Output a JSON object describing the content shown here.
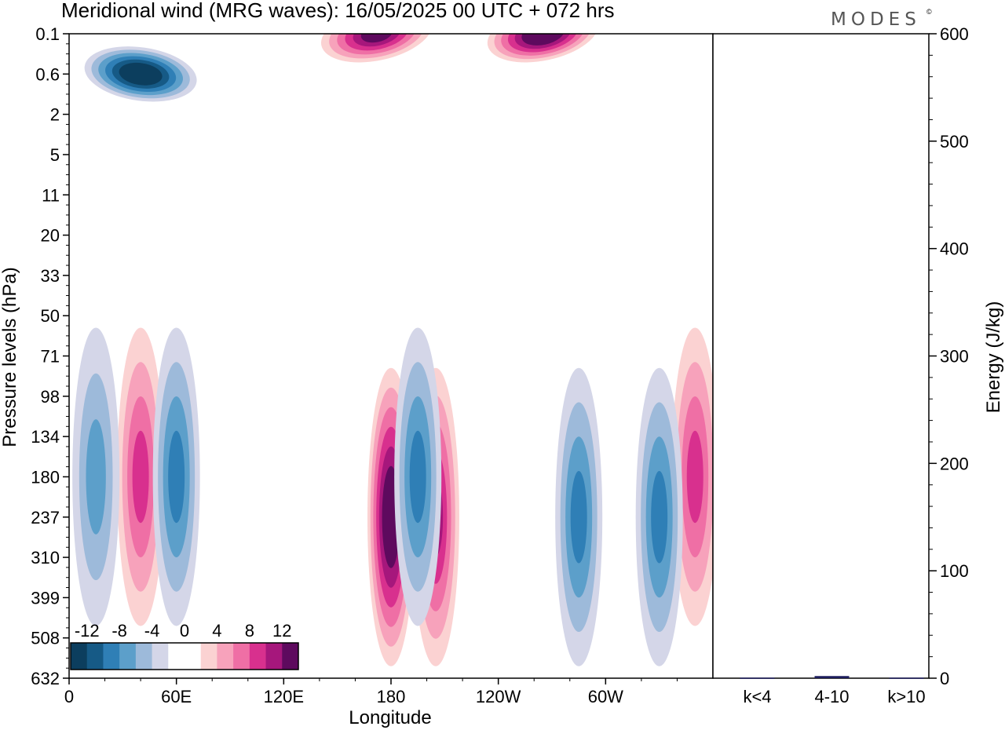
{
  "chart_data": [
    {
      "type": "heatmap",
      "title": "Meridional wind (MRG waves):  16/05/2025  00 UTC  + 072 hrs",
      "xlabel": "Longitude",
      "ylabel": "Pressure levels (hPa)",
      "x_ticks": [
        "0",
        "60E",
        "120E",
        "180",
        "120W",
        "60W"
      ],
      "x_tick_degrees": [
        0,
        60,
        120,
        180,
        240,
        300
      ],
      "x_range_degrees": [
        0,
        360
      ],
      "y_ticks": [
        "0.1",
        "0.6",
        "2",
        "5",
        "11",
        "20",
        "33",
        "50",
        "71",
        "98",
        "134",
        "180",
        "237",
        "310",
        "399",
        "508",
        "632"
      ],
      "colorbar": {
        "labels": [
          "-12",
          "-8",
          "-4",
          "0",
          "4",
          "8",
          "12"
        ],
        "colors": [
          "#0c3e5e",
          "#165a86",
          "#2f7fb6",
          "#5c9fca",
          "#9dbada",
          "#d4d6e8",
          "#ffffff",
          "#ffffff",
          "#fbd2d2",
          "#f7a2bb",
          "#ef6fa5",
          "#d8308e",
          "#a6177c",
          "#5e0a5e"
        ]
      },
      "features": [
        {
          "sign": "positive",
          "longitude": 180,
          "pressure": 237,
          "peak": 14
        },
        {
          "sign": "positive",
          "longitude": 205,
          "pressure": 237,
          "peak": 10
        },
        {
          "sign": "positive",
          "longitude": 40,
          "pressure": 180,
          "peak": 8
        },
        {
          "sign": "positive",
          "longitude": 350,
          "pressure": 180,
          "peak": 8
        },
        {
          "sign": "positive",
          "longitude": 265,
          "pressure": 0.1,
          "peak": 14
        },
        {
          "sign": "positive",
          "longitude": 172,
          "pressure": 0.1,
          "peak": 12
        },
        {
          "sign": "negative",
          "longitude": 40,
          "pressure": 0.6,
          "peak": -13
        },
        {
          "sign": "negative",
          "longitude": 195,
          "pressure": 180,
          "peak": -8
        },
        {
          "sign": "negative",
          "longitude": 285,
          "pressure": 237,
          "peak": -8
        },
        {
          "sign": "negative",
          "longitude": 330,
          "pressure": 237,
          "peak": -8
        },
        {
          "sign": "negative",
          "longitude": 60,
          "pressure": 180,
          "peak": -7
        },
        {
          "sign": "negative",
          "longitude": 15,
          "pressure": 180,
          "peak": -6
        }
      ]
    },
    {
      "type": "bar",
      "ylabel": "Energy (J/kg)",
      "ylim": [
        0,
        600
      ],
      "y_ticks": [
        "0",
        "100",
        "200",
        "300",
        "400",
        "500",
        "600"
      ],
      "categories": [
        "k<4",
        "4-10",
        "k>10"
      ],
      "values": [
        0.5,
        2,
        0.5
      ],
      "bar_color": "#1c1c5c"
    }
  ],
  "brand": "MODES",
  "brand_mark": "©"
}
